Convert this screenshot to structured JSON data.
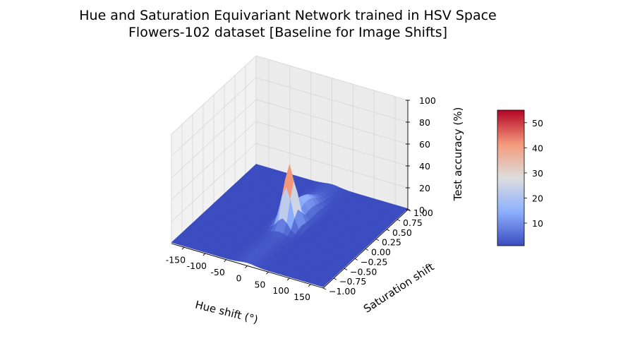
{
  "chart_data": {
    "type": "surface3d",
    "title_line1": "Hue and Saturation Equivariant Network trained in HSV Space",
    "title_line2": "Flowers-102 dataset [Baseline for Image Shifts]",
    "xlabel": "Hue shift (°)",
    "ylabel": "Saturation shift",
    "zlabel": "Test accuracy (%)",
    "x_ticks": [
      "-150",
      "-100",
      "-50",
      "0",
      "50",
      "100",
      "150"
    ],
    "x_tick_values": [
      -150,
      -100,
      -50,
      0,
      50,
      100,
      150
    ],
    "y_ticks": [
      "−1.00",
      "−0.75",
      "−0.50",
      "−0.25",
      "0.00",
      "0.25",
      "0.50",
      "0.75",
      "1.00"
    ],
    "y_tick_values": [
      -1,
      -0.75,
      -0.5,
      -0.25,
      0,
      0.25,
      0.5,
      0.75,
      1
    ],
    "z_ticks": [
      "0",
      "20",
      "40",
      "60",
      "80",
      "100"
    ],
    "z_tick_values": [
      0,
      20,
      40,
      60,
      80,
      100
    ],
    "xlim": [
      -180,
      180
    ],
    "ylim": [
      -1,
      1
    ],
    "zlim": [
      0,
      100
    ],
    "colormap": "coolwarm",
    "colorbar_ticks": [
      "10",
      "20",
      "30",
      "40",
      "50"
    ],
    "colorbar_tick_values": [
      10,
      20,
      30,
      40,
      50
    ],
    "colorbar_range": [
      1,
      55
    ],
    "peak": {
      "hue_shift": 0,
      "saturation_shift": 0,
      "accuracy": 55
    },
    "secondary_ridge": {
      "hue_shift": 0,
      "saturation_shift_from": 0,
      "saturation_shift_to": 1,
      "accuracy": 15
    },
    "floor_accuracy": 1,
    "grid": true,
    "colors": {
      "low": "#3b4cc0",
      "mid": "#dddddd",
      "high": "#b40426"
    }
  }
}
